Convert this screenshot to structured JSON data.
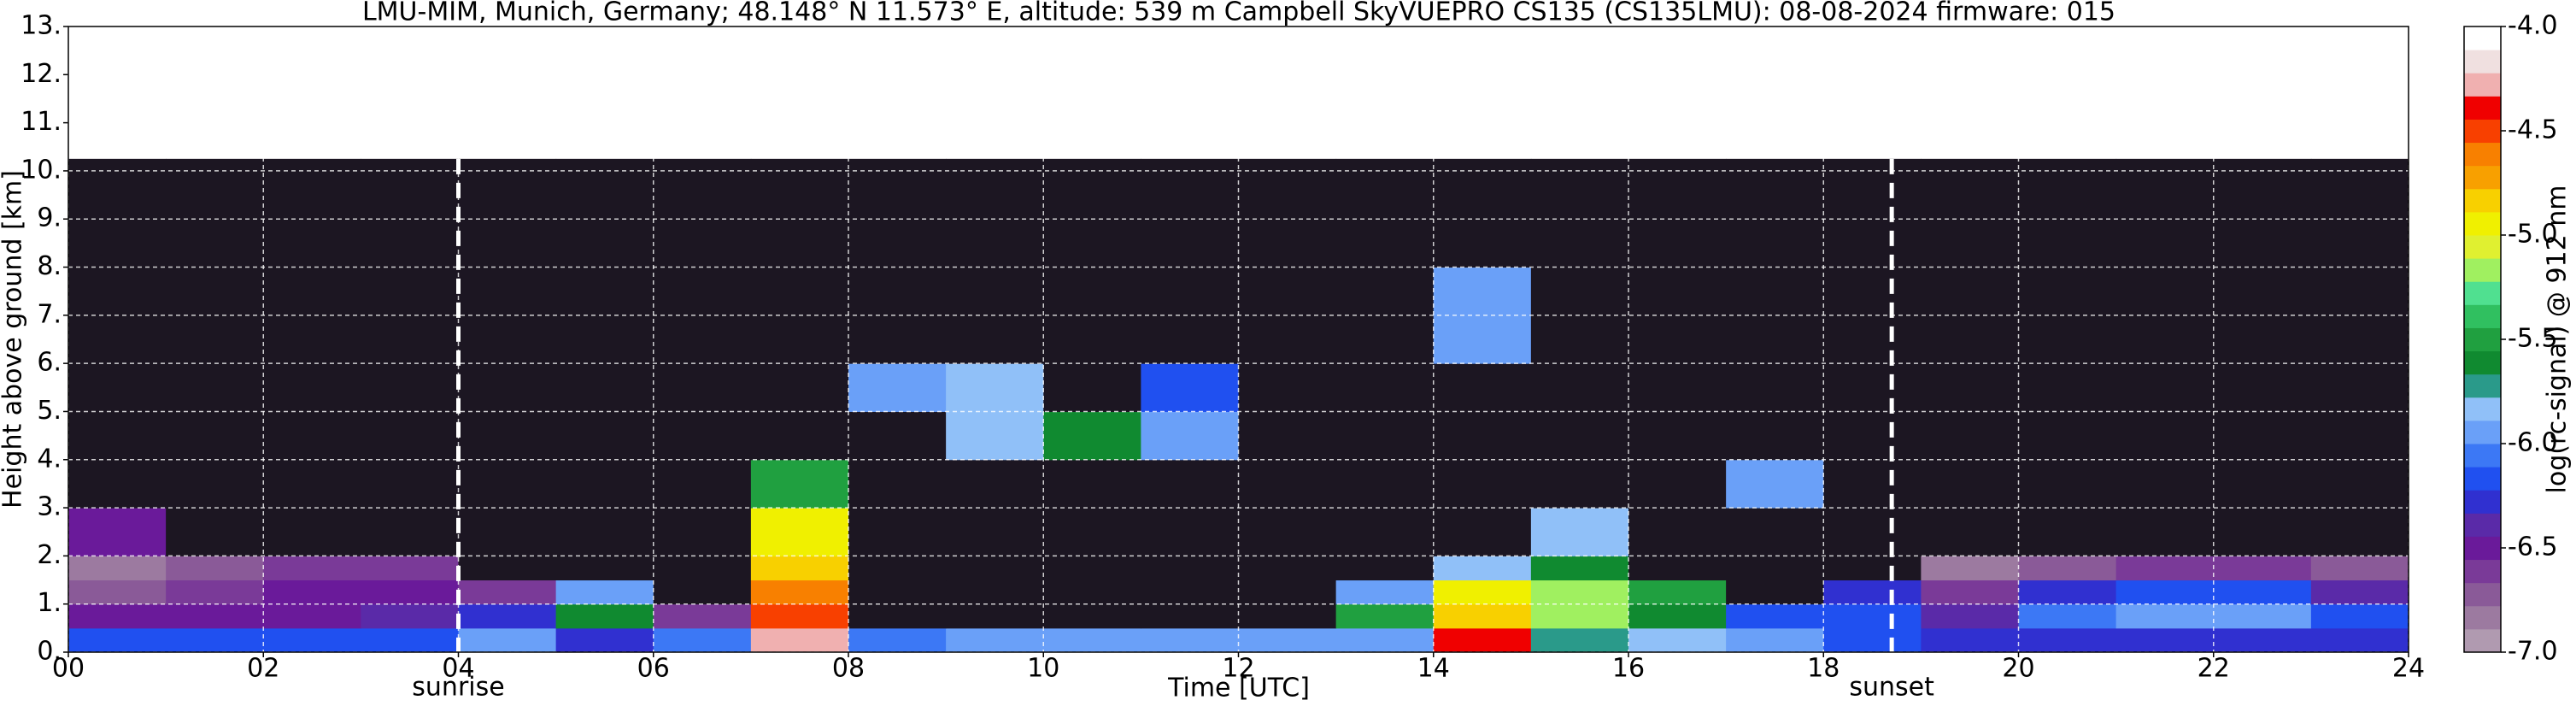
{
  "chart_data": {
    "type": "heatmap",
    "title": "LMU-MIM, Munich, Germany; 48.148° N 11.573° E, altitude: 539 m    Campbell SkyVUEPRO CS135 (CS135LMU): 08-08-2024    firmware: 015",
    "xlabel": "Time [UTC]",
    "ylabel": "Height above ground [km]",
    "colorbar_label": "log(rc-signal) @ 912 nm",
    "xlim": [
      0,
      24
    ],
    "ylim": [
      0,
      13
    ],
    "xticks": [
      {
        "value": 0,
        "label": "00"
      },
      {
        "value": 2,
        "label": "02"
      },
      {
        "value": 4,
        "label": "04"
      },
      {
        "value": 6,
        "label": "06"
      },
      {
        "value": 8,
        "label": "08"
      },
      10,
      12,
      14,
      16,
      18,
      20,
      22,
      24
    ],
    "yticks": [
      {
        "value": 0,
        "label": "0."
      },
      {
        "value": 1,
        "label": "1."
      },
      {
        "value": 2,
        "label": "2."
      },
      {
        "value": 3,
        "label": "3."
      },
      {
        "value": 4,
        "label": "4."
      },
      {
        "value": 5,
        "label": "5."
      },
      {
        "value": 6,
        "label": "6."
      },
      {
        "value": 7,
        "label": "7."
      },
      {
        "value": 8,
        "label": "8."
      },
      {
        "value": 9,
        "label": "9."
      },
      {
        "value": 10,
        "label": "10."
      },
      {
        "value": 11,
        "label": "11."
      },
      {
        "value": 12,
        "label": "12."
      },
      {
        "value": 13,
        "label": "13."
      }
    ],
    "grid": true,
    "xbins": [
      0,
      1,
      2,
      3,
      4,
      5,
      6,
      7,
      8,
      9,
      10,
      11,
      12,
      13,
      14,
      15,
      16,
      17,
      18,
      19,
      20,
      21,
      22,
      23,
      24
    ],
    "ybins": [
      0,
      0.5,
      1,
      1.5,
      2,
      3,
      4,
      5,
      6,
      8,
      10.25
    ],
    "values": [
      [
        -6.2,
        -6.2,
        -6.2,
        -6.2,
        -6.0,
        -6.3,
        -6.1,
        -4.3,
        -6.1,
        -6.0,
        -6.0,
        -6.0,
        -6.0,
        -5.9,
        -4.4,
        -5.7,
        -5.8,
        -6.0,
        -6.2,
        -6.3,
        -6.3,
        -6.3,
        -6.3,
        -6.3
      ],
      [
        -6.5,
        -6.5,
        -6.5,
        -6.4,
        -6.3,
        -5.6,
        -6.6,
        -4.5,
        -7.3,
        -7.3,
        -7.3,
        -7.3,
        -7.3,
        -5.5,
        -4.8,
        -5.2,
        -5.6,
        -6.2,
        -6.2,
        -6.4,
        -6.1,
        -6.0,
        -6.0,
        -6.2
      ],
      [
        -6.7,
        -6.6,
        -6.5,
        -6.5,
        -6.6,
        -6.0,
        -7.3,
        -4.6,
        -7.3,
        -7.3,
        -7.3,
        -7.3,
        -7.3,
        -6.0,
        -5.0,
        -5.2,
        -5.5,
        -7.3,
        -6.3,
        -6.6,
        -6.3,
        -6.2,
        -6.2,
        -6.4
      ],
      [
        -6.8,
        -6.7,
        -6.6,
        -6.6,
        -7.3,
        -7.3,
        -7.3,
        -4.8,
        -7.3,
        -7.3,
        -7.3,
        -7.3,
        -7.3,
        -7.3,
        -5.8,
        -5.6,
        -7.3,
        -7.3,
        -7.3,
        -6.8,
        -6.7,
        -6.6,
        -6.6,
        -6.7
      ],
      [
        -6.5,
        -7.3,
        -7.3,
        -7.3,
        -7.3,
        -7.3,
        -7.3,
        -5.0,
        -7.3,
        -7.3,
        -7.3,
        -7.3,
        -7.3,
        -7.3,
        -7.3,
        -5.8,
        -7.3,
        -7.3,
        -7.3,
        -7.3,
        -7.3,
        -7.3,
        -7.3,
        -7.3
      ],
      [
        -7.3,
        -7.3,
        -7.3,
        -7.3,
        -7.3,
        -7.3,
        -7.3,
        -5.5,
        -7.3,
        -7.3,
        -7.3,
        -7.3,
        -7.3,
        -7.3,
        -7.3,
        -7.3,
        -7.3,
        -6.0,
        -7.3,
        -7.3,
        -7.3,
        -7.3,
        -7.3,
        -7.3
      ],
      [
        -7.3,
        -7.3,
        -7.3,
        -7.3,
        -7.3,
        -7.3,
        -7.3,
        -7.3,
        -7.3,
        -5.8,
        -5.6,
        -6.0,
        -7.3,
        -7.3,
        -7.3,
        -7.3,
        -7.3,
        -7.3,
        -7.3,
        -7.3,
        -7.3,
        -7.3,
        -7.3,
        -7.3
      ],
      [
        -7.3,
        -7.3,
        -7.3,
        -7.3,
        -7.3,
        -7.3,
        -7.3,
        -7.3,
        -5.9,
        -5.8,
        -7.3,
        -6.2,
        -7.3,
        -7.3,
        -7.3,
        -7.3,
        -7.3,
        -7.3,
        -7.3,
        -7.3,
        -7.3,
        -7.3,
        -7.3,
        -7.3
      ],
      [
        -7.3,
        -7.3,
        -7.3,
        -7.3,
        -7.3,
        -7.3,
        -7.3,
        -7.3,
        -7.3,
        -7.3,
        -7.3,
        -7.3,
        -7.3,
        -7.3,
        -6.0,
        -7.3,
        -7.3,
        -7.3,
        -7.3,
        -7.3,
        -7.3,
        -7.3,
        -7.3,
        -7.3
      ],
      [
        -7.2,
        -7.2,
        -7.2,
        -7.2,
        -7.2,
        -7.2,
        -7.2,
        -7.2,
        -7.2,
        -7.2,
        -7.2,
        -7.2,
        -7.2,
        -7.2,
        -7.2,
        -7.2,
        -7.2,
        -7.2,
        -7.2,
        -7.2,
        -7.2,
        -7.2,
        -7.2,
        -7.2
      ]
    ],
    "zlim": [
      -7,
      -4
    ],
    "zticks": [
      {
        "value": -7,
        "label": "-7.0"
      },
      -6.5,
      {
        "value": -6,
        "label": "-6.0"
      },
      -5.5,
      {
        "value": -5,
        "label": "-5.0"
      },
      -4.5,
      {
        "value": -4,
        "label": "-4.0"
      }
    ],
    "colormap": [
      "#b09ab0",
      "#9c7aa0",
      "#8a5a98",
      "#7a3a98",
      "#6a1a9a",
      "#5a2aa8",
      "#3030d0",
      "#2050f0",
      "#3c78f5",
      "#6aa0f8",
      "#90c0f8",
      "#2a9a8a",
      "#108a30",
      "#20a040",
      "#30c060",
      "#50e090",
      "#a0f060",
      "#e0f030",
      "#f0f000",
      "#f8d000",
      "#f8a000",
      "#f88000",
      "#f84000",
      "#f00000",
      "#f0b0b0",
      "#f0e0e0",
      "#ffffff"
    ],
    "under_color": "#1c1622",
    "annotations": [
      {
        "text": "sunrise",
        "x": 4.0
      },
      {
        "text": "sunset",
        "x": 18.7
      }
    ]
  }
}
